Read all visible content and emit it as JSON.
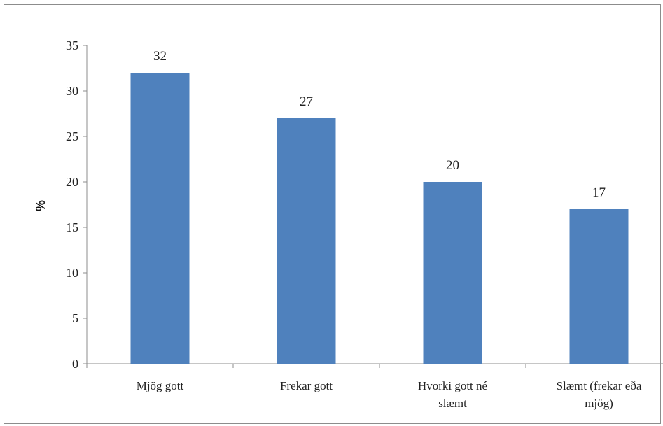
{
  "chart_data": {
    "type": "bar",
    "categories": [
      [
        "Mjög gott"
      ],
      [
        "Frekar gott"
      ],
      [
        "Hvorki gott né",
        "slæmt"
      ],
      [
        "Slæmt (frekar eða",
        "mjög)"
      ]
    ],
    "values": [
      32,
      27,
      20,
      17
    ],
    "data_labels": [
      "32",
      "27",
      "20",
      "17"
    ],
    "title": "",
    "xlabel": "",
    "ylabel": "%",
    "ylim": [
      0,
      35
    ],
    "yticks": [
      0,
      5,
      10,
      15,
      20,
      25,
      30,
      35
    ],
    "grid": false,
    "legend": "none",
    "bar_color": "#4f81bd"
  }
}
